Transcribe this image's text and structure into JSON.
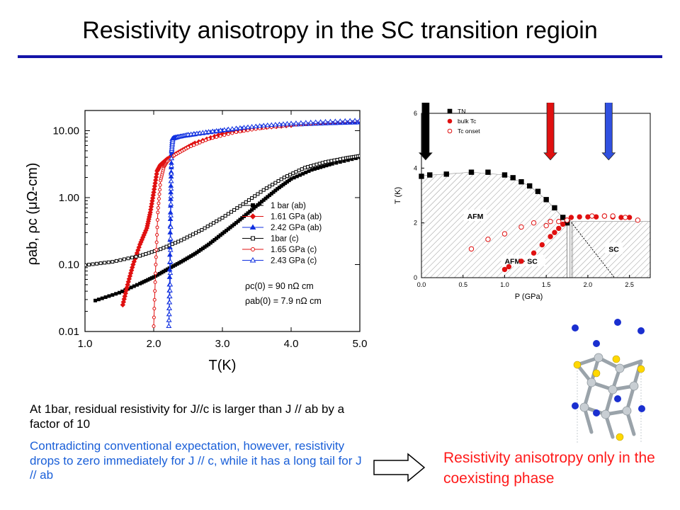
{
  "title": "Resistivity anisotropy in the SC transition regioin",
  "notes": {
    "black": "At 1bar, residual resistivity for J//c is larger than J // ab by a factor of 10",
    "blue": "Contradicting conventional expectation, however, resistivity drops to zero immediately for J // c, while it has a long tail for J // ab"
  },
  "conclusion": "Resistivity anisotropy only in the coexisting phase",
  "colors": {
    "title_rule": "#1414a8",
    "blue_text": "#1a5fd8",
    "red_text": "#ff1a1a"
  },
  "chart_data": [
    {
      "type": "line",
      "xlabel": "T(K)",
      "ylabel": "ρab, ρc (μΩ-cm)",
      "xlim": [
        1.0,
        5.0
      ],
      "ylim": [
        0.01,
        20
      ],
      "yscale": "log",
      "xticks": [
        "1.0",
        "2.0",
        "3.0",
        "4.0",
        "5.0"
      ],
      "yticks": [
        "0.01",
        "0.10",
        "1.00",
        "10.00"
      ],
      "legend_position": "center-right",
      "annotations": [
        "ρc(0) = 90 nΩ cm",
        "ρab(0) = 7.9 nΩ cm"
      ],
      "series": [
        {
          "name": "1 bar (ab)",
          "color": "#000000",
          "marker": "filled-square",
          "x": [
            1.15,
            1.5,
            1.8,
            2.0,
            2.2,
            2.4,
            2.6,
            2.8,
            3.0,
            3.2,
            3.4,
            3.6,
            3.8,
            4.0,
            4.3,
            4.6,
            5.0
          ],
          "y": [
            0.029,
            0.038,
            0.052,
            0.065,
            0.085,
            0.11,
            0.145,
            0.2,
            0.29,
            0.42,
            0.62,
            0.92,
            1.35,
            1.9,
            2.6,
            3.2,
            4.0
          ]
        },
        {
          "name": "1.61 GPa (ab)",
          "color": "#e01010",
          "marker": "filled-diamond",
          "x": [
            1.55,
            1.62,
            1.7,
            1.8,
            1.9,
            1.95,
            2.0,
            2.05,
            2.1,
            2.2,
            2.4,
            2.6,
            3.0,
            3.5,
            4.0
          ],
          "y": [
            0.025,
            0.05,
            0.1,
            0.2,
            0.35,
            0.6,
            1.2,
            2.5,
            3.1,
            3.8,
            5.0,
            6.5,
            9.0,
            11.0,
            12.0
          ]
        },
        {
          "name": "2.42 GPa (ab)",
          "color": "#1030e0",
          "marker": "filled-triangle",
          "x": [
            2.22,
            2.23,
            2.24,
            2.25,
            2.26,
            2.27,
            2.3,
            2.4,
            2.6,
            3.0,
            3.5,
            4.0,
            4.5,
            5.0
          ],
          "y": [
            0.012,
            0.05,
            0.3,
            1.5,
            4.5,
            7.5,
            7.9,
            8.2,
            8.8,
            10.0,
            11.2,
            12.2,
            12.8,
            13.2
          ]
        },
        {
          "name": "1bar (c)",
          "color": "#000000",
          "marker": "open-square",
          "x": [
            1.0,
            1.4,
            1.8,
            2.1,
            2.4,
            2.7,
            3.0,
            3.3,
            3.6,
            3.9,
            4.2,
            4.5,
            4.8,
            5.0
          ],
          "y": [
            0.098,
            0.11,
            0.135,
            0.17,
            0.23,
            0.33,
            0.5,
            0.8,
            1.3,
            2.0,
            2.8,
            3.4,
            3.9,
            4.2
          ]
        },
        {
          "name": "1.65 GPa (c)",
          "color": "#e01010",
          "marker": "open-circle",
          "x": [
            2.0,
            2.03,
            2.06,
            2.1,
            2.15,
            2.2,
            2.3,
            2.5,
            2.8,
            3.2,
            3.6,
            4.0,
            4.5,
            5.0
          ],
          "y": [
            0.012,
            0.1,
            0.6,
            1.8,
            2.9,
            3.5,
            4.3,
            5.6,
            7.5,
            9.5,
            11.0,
            12.2,
            13.2,
            14.0
          ]
        },
        {
          "name": "2.43 GPa (c)",
          "color": "#1030e0",
          "marker": "open-triangle",
          "x": [
            2.22,
            2.24,
            2.25,
            2.26,
            2.28,
            2.35,
            2.5,
            2.8,
            3.2,
            3.6,
            4.0,
            4.5,
            5.0
          ],
          "y": [
            0.012,
            0.05,
            0.8,
            5.0,
            7.6,
            8.0,
            8.7,
            9.6,
            10.8,
            11.9,
            12.8,
            13.6,
            14.2
          ]
        }
      ]
    },
    {
      "type": "scatter",
      "xlabel": "P (GPa)",
      "ylabel": "T (K)",
      "xlim": [
        0.0,
        2.75
      ],
      "ylim": [
        0,
        6
      ],
      "xticks": [
        "0.0",
        "0.5",
        "1.0",
        "1.5",
        "2.0",
        "2.5"
      ],
      "yticks": [
        "0",
        "2",
        "4",
        "6"
      ],
      "legend_position": "top-left",
      "region_labels": [
        "AFM",
        "AFM+ SC",
        "SC"
      ],
      "legend": [
        "TN",
        "bulk Tc",
        "Tc onset"
      ],
      "series": [
        {
          "name": "TN",
          "color": "#000000",
          "marker": "filled-square",
          "x": [
            0.0,
            0.1,
            0.3,
            0.6,
            0.8,
            1.0,
            1.1,
            1.2,
            1.3,
            1.4,
            1.5,
            1.6,
            1.7,
            1.75
          ],
          "y": [
            3.7,
            3.75,
            3.78,
            3.85,
            3.85,
            3.75,
            3.65,
            3.5,
            3.35,
            3.15,
            2.85,
            2.55,
            2.2,
            2.0
          ]
        },
        {
          "name": "bulk Tc",
          "color": "#e01010",
          "marker": "filled-circle",
          "x": [
            1.0,
            1.05,
            1.2,
            1.35,
            1.45,
            1.55,
            1.6,
            1.65,
            1.7,
            1.75,
            1.8,
            1.9,
            2.0,
            2.1,
            2.2,
            2.3,
            2.4,
            2.5
          ],
          "y": [
            0.3,
            0.4,
            0.6,
            0.9,
            1.2,
            1.5,
            1.65,
            1.8,
            1.95,
            2.1,
            2.2,
            2.22,
            2.22,
            2.22,
            2.25,
            2.22,
            2.2,
            2.2
          ]
        },
        {
          "name": "Tc onset",
          "color": "#e01010",
          "marker": "open-circle",
          "x": [
            0.6,
            0.8,
            1.0,
            1.2,
            1.35,
            1.5,
            1.55,
            1.65,
            1.75,
            2.05,
            2.2,
            2.3,
            2.45,
            2.6
          ],
          "y": [
            1.05,
            1.4,
            1.6,
            1.85,
            2.0,
            1.9,
            2.05,
            2.05,
            2.1,
            2.25,
            2.25,
            2.25,
            2.2,
            2.1
          ]
        }
      ]
    }
  ]
}
